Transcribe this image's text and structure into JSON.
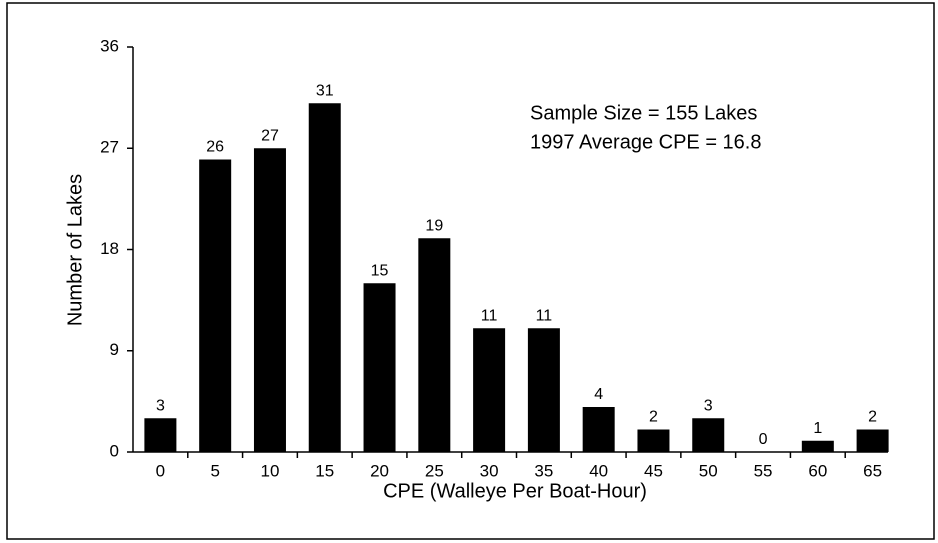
{
  "chart_data": {
    "type": "bar",
    "ylabel": "Number of Lakes",
    "xlabel": "CPE (Walleye Per Boat-Hour)",
    "annotations": [
      "Sample Size = 155 Lakes",
      "1997 Average CPE = 16.8"
    ],
    "categories": [
      "0",
      "5",
      "10",
      "15",
      "20",
      "25",
      "30",
      "35",
      "40",
      "45",
      "50",
      "55",
      "60",
      "65"
    ],
    "values": [
      3,
      26,
      27,
      31,
      15,
      19,
      11,
      11,
      4,
      2,
      3,
      0,
      1,
      2
    ],
    "color": "#000000",
    "ylim": [
      0,
      36
    ],
    "yticks": [
      0,
      9,
      18,
      27,
      36
    ],
    "grid": false
  }
}
